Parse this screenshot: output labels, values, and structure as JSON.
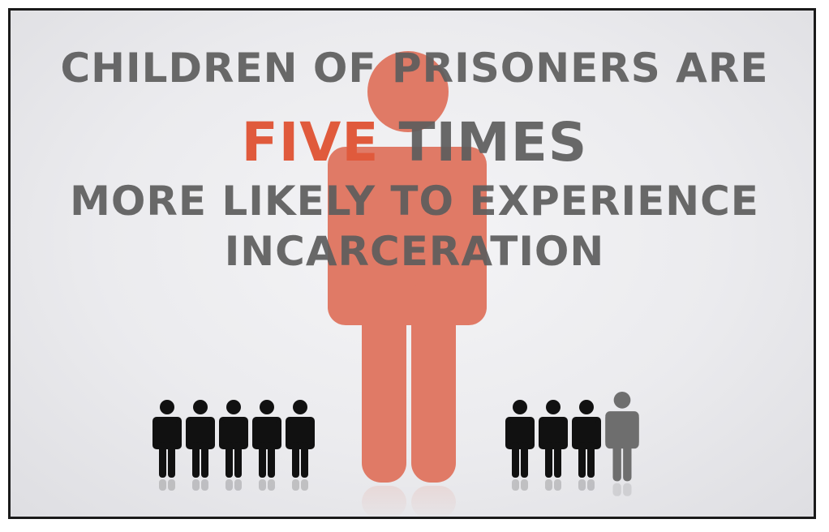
{
  "headline": {
    "line1": "CHILDREN OF PRISONERS ARE",
    "line2_accent": "FIVE",
    "line2_rest": "TIMES",
    "line3": "MORE LIKELY TO EXPERIENCE",
    "line4": "INCARCERATION"
  },
  "colors": {
    "accent": "#e05a3c",
    "large_figure": "#e07a66",
    "text_gray": "#5c5c5c",
    "small_figure": "#111111",
    "gray_figure": "#6e6e6e"
  },
  "icons": {
    "large": "person-icon",
    "small": "person-icon"
  },
  "groups": {
    "left_black_count": 5,
    "right_black_count": 3,
    "right_gray_count": 1
  }
}
